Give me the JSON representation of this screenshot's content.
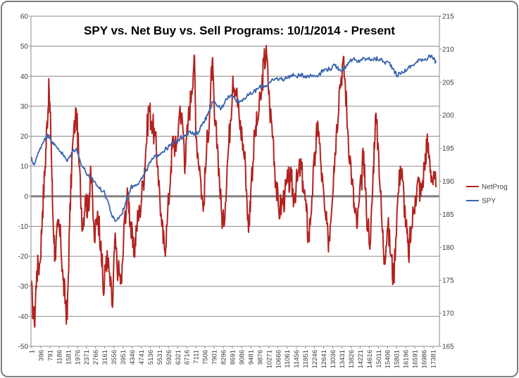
{
  "chart_data": {
    "type": "line",
    "title": "SPY vs. Net Buy vs. Sell Programs:  10/1/2014 - Present",
    "xlabel": "",
    "ylabel": "",
    "y_left": {
      "min": -50,
      "max": 60,
      "step": 10,
      "labels": [
        "-50",
        "-40",
        "-30",
        "-20",
        "-10",
        "0",
        "10",
        "20",
        "30",
        "40",
        "50",
        "60"
      ]
    },
    "y_right": {
      "min": 165,
      "max": 215,
      "step": 5,
      "labels": [
        "165",
        "170",
        "175",
        "180",
        "185",
        "190",
        "195",
        "200",
        "205",
        "210",
        "215"
      ]
    },
    "x_range": [
      1,
      17800
    ],
    "x_tick_labels": [
      "1",
      "396",
      "791",
      "1186",
      "1581",
      "1976",
      "2371",
      "2766",
      "3161",
      "3556",
      "3951",
      "4346",
      "4741",
      "5136",
      "5531",
      "5926",
      "6321",
      "6716",
      "7111",
      "7506",
      "7901",
      "8296",
      "8691",
      "9086",
      "9481",
      "9876",
      "10271",
      "10666",
      "11061",
      "11456",
      "11851",
      "12246",
      "12641",
      "13036",
      "13431",
      "13826",
      "14221",
      "14616",
      "15011",
      "15406",
      "15801",
      "16196",
      "16591",
      "16986",
      "17381"
    ],
    "zero_line_value": 0,
    "grid": true,
    "legend_position": "right",
    "series": [
      {
        "name": "NetProg",
        "axis": "left",
        "color": "#b2221f",
        "points": [
          [
            1,
            -30
          ],
          [
            150,
            -43
          ],
          [
            250,
            -25
          ],
          [
            396,
            -22
          ],
          [
            500,
            -5
          ],
          [
            620,
            10
          ],
          [
            700,
            25
          ],
          [
            791,
            36
          ],
          [
            880,
            18
          ],
          [
            950,
            -5
          ],
          [
            1050,
            -20
          ],
          [
            1186,
            -10
          ],
          [
            1300,
            -15
          ],
          [
            1400,
            -28
          ],
          [
            1500,
            -35
          ],
          [
            1581,
            -41
          ],
          [
            1680,
            -10
          ],
          [
            1800,
            15
          ],
          [
            1976,
            29
          ],
          [
            2100,
            10
          ],
          [
            2250,
            -10
          ],
          [
            2371,
            0
          ],
          [
            2500,
            -5
          ],
          [
            2600,
            10
          ],
          [
            2766,
            -15
          ],
          [
            2900,
            -5
          ],
          [
            3050,
            -15
          ],
          [
            3161,
            -33
          ],
          [
            3280,
            -20
          ],
          [
            3400,
            -25
          ],
          [
            3556,
            -37
          ],
          [
            3650,
            -15
          ],
          [
            3800,
            -25
          ],
          [
            3951,
            -29
          ],
          [
            4100,
            -5
          ],
          [
            4250,
            0
          ],
          [
            4346,
            -10
          ],
          [
            4480,
            -20
          ],
          [
            4600,
            -10
          ],
          [
            4741,
            -5
          ],
          [
            4900,
            5
          ],
          [
            5000,
            15
          ],
          [
            5136,
            30
          ],
          [
            5250,
            25
          ],
          [
            5400,
            20
          ],
          [
            5531,
            10
          ],
          [
            5700,
            -10
          ],
          [
            5820,
            -18
          ],
          [
            5926,
            -10
          ],
          [
            6100,
            10
          ],
          [
            6200,
            20
          ],
          [
            6321,
            15
          ],
          [
            6500,
            30
          ],
          [
            6650,
            20
          ],
          [
            6716,
            10
          ],
          [
            6850,
            25
          ],
          [
            7000,
            35
          ],
          [
            7111,
            47
          ],
          [
            7200,
            20
          ],
          [
            7350,
            10
          ],
          [
            7506,
            -5
          ],
          [
            7650,
            15
          ],
          [
            7800,
            30
          ],
          [
            7901,
            45
          ],
          [
            8000,
            25
          ],
          [
            8150,
            15
          ],
          [
            8296,
            -5
          ],
          [
            8400,
            -10
          ],
          [
            8550,
            10
          ],
          [
            8691,
            25
          ],
          [
            8800,
            40
          ],
          [
            8950,
            35
          ],
          [
            9086,
            25
          ],
          [
            9200,
            20
          ],
          [
            9350,
            10
          ],
          [
            9481,
            -12
          ],
          [
            9600,
            5
          ],
          [
            9750,
            20
          ],
          [
            9876,
            25
          ],
          [
            10050,
            35
          ],
          [
            10150,
            45
          ],
          [
            10271,
            47
          ],
          [
            10400,
            30
          ],
          [
            10550,
            20
          ],
          [
            10666,
            5
          ],
          [
            10800,
            -5
          ],
          [
            10950,
            -2
          ],
          [
            11061,
            0
          ],
          [
            11200,
            5
          ],
          [
            11350,
            5
          ],
          [
            11456,
            0
          ],
          [
            11600,
            5
          ],
          [
            11750,
            10
          ],
          [
            11851,
            5
          ],
          [
            12000,
            -5
          ],
          [
            12100,
            -15
          ],
          [
            12246,
            0
          ],
          [
            12400,
            15
          ],
          [
            12500,
            25
          ],
          [
            12641,
            10
          ],
          [
            12800,
            -5
          ],
          [
            12950,
            -15
          ],
          [
            13036,
            -10
          ],
          [
            13200,
            10
          ],
          [
            13300,
            20
          ],
          [
            13431,
            35
          ],
          [
            13600,
            45
          ],
          [
            13700,
            37
          ],
          [
            13826,
            20
          ],
          [
            14000,
            5
          ],
          [
            14100,
            -5
          ],
          [
            14221,
            -10
          ],
          [
            14400,
            5
          ],
          [
            14500,
            15
          ],
          [
            14616,
            -5
          ],
          [
            14800,
            -15
          ],
          [
            14900,
            5
          ],
          [
            15011,
            27
          ],
          [
            15150,
            15
          ],
          [
            15300,
            -10
          ],
          [
            15406,
            -20
          ],
          [
            15550,
            -10
          ],
          [
            15700,
            -20
          ],
          [
            15801,
            -28
          ],
          [
            15950,
            -5
          ],
          [
            16100,
            10
          ],
          [
            16196,
            5
          ],
          [
            16350,
            -10
          ],
          [
            16450,
            -20
          ],
          [
            16591,
            -10
          ],
          [
            16750,
            0
          ],
          [
            16900,
            5
          ],
          [
            16986,
            0
          ],
          [
            17150,
            10
          ],
          [
            17250,
            18
          ],
          [
            17381,
            12
          ],
          [
            17500,
            5
          ],
          [
            17650,
            3
          ]
        ]
      },
      {
        "name": "SPY",
        "axis": "right",
        "color": "#3b66ad",
        "points": [
          [
            1,
            193.5
          ],
          [
            150,
            192.5
          ],
          [
            396,
            195
          ],
          [
            600,
            196.5
          ],
          [
            791,
            197
          ],
          [
            1000,
            195.5
          ],
          [
            1186,
            195
          ],
          [
            1400,
            194
          ],
          [
            1581,
            193
          ],
          [
            1800,
            194.5
          ],
          [
            1976,
            195
          ],
          [
            2150,
            193
          ],
          [
            2371,
            191.5
          ],
          [
            2550,
            190.5
          ],
          [
            2766,
            190
          ],
          [
            2950,
            189
          ],
          [
            3161,
            188.5
          ],
          [
            3350,
            187
          ],
          [
            3556,
            184.5
          ],
          [
            3700,
            184
          ],
          [
            3951,
            185
          ],
          [
            4150,
            187
          ],
          [
            4346,
            189
          ],
          [
            4550,
            189.5
          ],
          [
            4741,
            190
          ],
          [
            4950,
            191
          ],
          [
            5136,
            192.5
          ],
          [
            5350,
            193.5
          ],
          [
            5531,
            194
          ],
          [
            5750,
            194.5
          ],
          [
            5926,
            195
          ],
          [
            6100,
            195.5
          ],
          [
            6321,
            196
          ],
          [
            6500,
            196.5
          ],
          [
            6716,
            197
          ],
          [
            6900,
            197.5
          ],
          [
            7111,
            197
          ],
          [
            7300,
            197.5
          ],
          [
            7506,
            199
          ],
          [
            7700,
            200
          ],
          [
            7901,
            202
          ],
          [
            8100,
            201.5
          ],
          [
            8296,
            201
          ],
          [
            8500,
            202.5
          ],
          [
            8691,
            203
          ],
          [
            8900,
            202.5
          ],
          [
            9086,
            202
          ],
          [
            9250,
            202.5
          ],
          [
            9481,
            203
          ],
          [
            9700,
            203.5
          ],
          [
            9876,
            204
          ],
          [
            10100,
            204.5
          ],
          [
            10271,
            204.5
          ],
          [
            10450,
            205
          ],
          [
            10666,
            205.5
          ],
          [
            10900,
            205.5
          ],
          [
            11061,
            205.5
          ],
          [
            11300,
            206
          ],
          [
            11456,
            206
          ],
          [
            11700,
            206
          ],
          [
            11851,
            206
          ],
          [
            12050,
            206
          ],
          [
            12246,
            206
          ],
          [
            12450,
            206
          ],
          [
            12641,
            206.5
          ],
          [
            12850,
            207
          ],
          [
            13036,
            207
          ],
          [
            13250,
            207.5
          ],
          [
            13431,
            207
          ],
          [
            13650,
            207
          ],
          [
            13826,
            208
          ],
          [
            14050,
            208.5
          ],
          [
            14221,
            208
          ],
          [
            14400,
            208.5
          ],
          [
            14616,
            208.5
          ],
          [
            14850,
            208.5
          ],
          [
            15011,
            208.5
          ],
          [
            15200,
            208.5
          ],
          [
            15406,
            208
          ],
          [
            15600,
            208
          ],
          [
            15801,
            207
          ],
          [
            15950,
            206
          ],
          [
            16196,
            206.5
          ],
          [
            16400,
            207
          ],
          [
            16591,
            207.5
          ],
          [
            16800,
            208
          ],
          [
            16986,
            208.5
          ],
          [
            17200,
            208.5
          ],
          [
            17381,
            209
          ],
          [
            17550,
            208.5
          ],
          [
            17650,
            208
          ]
        ]
      }
    ]
  }
}
